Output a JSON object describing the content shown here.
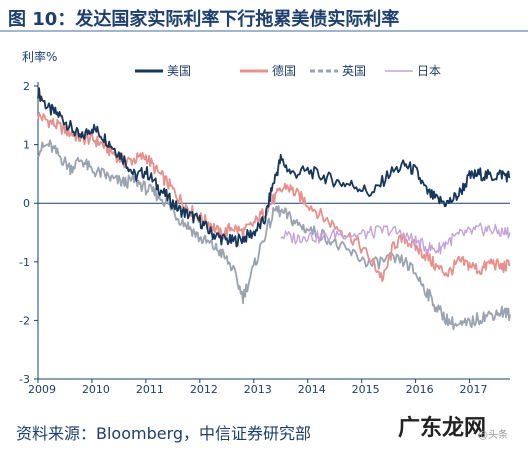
{
  "title": "图 10：发达国家实际利率下行拖累美债实际利率",
  "source": "资料来源：Bloomberg，中信证券研究部",
  "watermark": {
    "text": "广东龙网",
    "sub": "@头条"
  },
  "colors": {
    "title": "#1c3f6e",
    "us": "#16365c",
    "de": "#e8918c",
    "uk": "#9aa3b0",
    "jp": "#c6a2dc"
  },
  "chart_data": {
    "type": "line",
    "ylabel": "利率%",
    "ylim": [
      -3,
      2
    ],
    "xlim": [
      2009.0,
      2017.75
    ],
    "yticks": [
      "2",
      "1",
      "0",
      "-1",
      "-2",
      "-3"
    ],
    "xticks": [
      "2009",
      "2010",
      "2011",
      "2012",
      "2013",
      "2014",
      "2015",
      "2016",
      "2017"
    ],
    "legend_position": "top",
    "grid": false,
    "series": [
      {
        "name": "美国",
        "style": "solid",
        "points": [
          [
            2009.0,
            1.9
          ],
          [
            2009.2,
            1.6
          ],
          [
            2009.4,
            1.5
          ],
          [
            2009.6,
            1.3
          ],
          [
            2009.8,
            1.1
          ],
          [
            2010.0,
            1.3
          ],
          [
            2010.2,
            1.15
          ],
          [
            2010.4,
            0.95
          ],
          [
            2010.6,
            0.75
          ],
          [
            2010.8,
            0.45
          ],
          [
            2011.0,
            0.55
          ],
          [
            2011.2,
            0.3
          ],
          [
            2011.4,
            0.1
          ],
          [
            2011.6,
            -0.1
          ],
          [
            2011.8,
            -0.2
          ],
          [
            2012.0,
            -0.3
          ],
          [
            2012.2,
            -0.5
          ],
          [
            2012.4,
            -0.6
          ],
          [
            2012.6,
            -0.65
          ],
          [
            2012.8,
            -0.6
          ],
          [
            2013.0,
            -0.5
          ],
          [
            2013.2,
            -0.3
          ],
          [
            2013.35,
            0.3
          ],
          [
            2013.5,
            0.75
          ],
          [
            2013.7,
            0.5
          ],
          [
            2014.0,
            0.55
          ],
          [
            2014.3,
            0.45
          ],
          [
            2014.6,
            0.35
          ],
          [
            2014.9,
            0.3
          ],
          [
            2015.2,
            0.15
          ],
          [
            2015.5,
            0.5
          ],
          [
            2015.8,
            0.65
          ],
          [
            2016.0,
            0.55
          ],
          [
            2016.2,
            0.2
          ],
          [
            2016.4,
            0.05
          ],
          [
            2016.6,
            0.0
          ],
          [
            2016.8,
            0.15
          ],
          [
            2017.0,
            0.45
          ],
          [
            2017.2,
            0.5
          ],
          [
            2017.4,
            0.45
          ],
          [
            2017.6,
            0.5
          ],
          [
            2017.75,
            0.45
          ]
        ]
      },
      {
        "name": "德国",
        "style": "solid",
        "points": [
          [
            2009.0,
            1.5
          ],
          [
            2009.2,
            1.4
          ],
          [
            2009.4,
            1.3
          ],
          [
            2009.6,
            1.2
          ],
          [
            2009.8,
            1.1
          ],
          [
            2010.0,
            1.1
          ],
          [
            2010.2,
            1.0
          ],
          [
            2010.4,
            0.85
          ],
          [
            2010.6,
            0.7
          ],
          [
            2010.8,
            0.75
          ],
          [
            2011.0,
            0.8
          ],
          [
            2011.2,
            0.55
          ],
          [
            2011.4,
            0.35
          ],
          [
            2011.6,
            0.1
          ],
          [
            2011.8,
            -0.1
          ],
          [
            2012.0,
            -0.25
          ],
          [
            2012.2,
            -0.35
          ],
          [
            2012.4,
            -0.55
          ],
          [
            2012.6,
            -0.4
          ],
          [
            2012.8,
            -0.5
          ],
          [
            2013.0,
            -0.35
          ],
          [
            2013.2,
            -0.15
          ],
          [
            2013.4,
            0.1
          ],
          [
            2013.6,
            0.3
          ],
          [
            2013.8,
            0.15
          ],
          [
            2014.0,
            0.0
          ],
          [
            2014.3,
            -0.25
          ],
          [
            2014.6,
            -0.45
          ],
          [
            2014.9,
            -0.65
          ],
          [
            2015.2,
            -1.0
          ],
          [
            2015.4,
            -1.3
          ],
          [
            2015.6,
            -0.7
          ],
          [
            2015.8,
            -0.6
          ],
          [
            2016.0,
            -0.75
          ],
          [
            2016.2,
            -0.9
          ],
          [
            2016.4,
            -1.1
          ],
          [
            2016.6,
            -1.2
          ],
          [
            2016.8,
            -1.0
          ],
          [
            2017.0,
            -1.05
          ],
          [
            2017.2,
            -1.15
          ],
          [
            2017.4,
            -1.0
          ],
          [
            2017.6,
            -1.1
          ],
          [
            2017.75,
            -1.05
          ]
        ]
      },
      {
        "name": "英国",
        "style": "dashed",
        "points": [
          [
            2009.0,
            0.9
          ],
          [
            2009.2,
            1.0
          ],
          [
            2009.4,
            0.8
          ],
          [
            2009.6,
            0.6
          ],
          [
            2009.8,
            0.75
          ],
          [
            2010.0,
            0.55
          ],
          [
            2010.2,
            0.5
          ],
          [
            2010.4,
            0.4
          ],
          [
            2010.6,
            0.35
          ],
          [
            2010.8,
            0.4
          ],
          [
            2011.0,
            0.25
          ],
          [
            2011.2,
            0.15
          ],
          [
            2011.4,
            0.0
          ],
          [
            2011.6,
            -0.25
          ],
          [
            2011.8,
            -0.4
          ],
          [
            2012.0,
            -0.6
          ],
          [
            2012.2,
            -0.7
          ],
          [
            2012.4,
            -0.85
          ],
          [
            2012.6,
            -1.1
          ],
          [
            2012.8,
            -1.6
          ],
          [
            2013.0,
            -1.1
          ],
          [
            2013.2,
            -0.55
          ],
          [
            2013.4,
            -0.1
          ],
          [
            2013.6,
            -0.2
          ],
          [
            2013.8,
            -0.35
          ],
          [
            2014.0,
            -0.45
          ],
          [
            2014.3,
            -0.55
          ],
          [
            2014.6,
            -0.75
          ],
          [
            2014.9,
            -0.9
          ],
          [
            2015.2,
            -1.05
          ],
          [
            2015.5,
            -0.95
          ],
          [
            2015.8,
            -1.0
          ],
          [
            2016.0,
            -1.2
          ],
          [
            2016.2,
            -1.5
          ],
          [
            2016.4,
            -1.8
          ],
          [
            2016.6,
            -2.0
          ],
          [
            2016.8,
            -2.1
          ],
          [
            2017.0,
            -2.05
          ],
          [
            2017.2,
            -1.95
          ],
          [
            2017.4,
            -1.9
          ],
          [
            2017.6,
            -1.85
          ],
          [
            2017.75,
            -1.9
          ]
        ]
      },
      {
        "name": "日本",
        "style": "solid",
        "points": [
          [
            2013.5,
            -0.55
          ],
          [
            2013.8,
            -0.6
          ],
          [
            2014.0,
            -0.55
          ],
          [
            2014.3,
            -0.6
          ],
          [
            2014.6,
            -0.5
          ],
          [
            2014.9,
            -0.55
          ],
          [
            2015.2,
            -0.5
          ],
          [
            2015.5,
            -0.45
          ],
          [
            2015.8,
            -0.55
          ],
          [
            2016.0,
            -0.65
          ],
          [
            2016.2,
            -0.75
          ],
          [
            2016.4,
            -0.8
          ],
          [
            2016.6,
            -0.65
          ],
          [
            2016.8,
            -0.55
          ],
          [
            2017.0,
            -0.5
          ],
          [
            2017.2,
            -0.45
          ],
          [
            2017.4,
            -0.45
          ],
          [
            2017.6,
            -0.5
          ],
          [
            2017.75,
            -0.5
          ]
        ]
      }
    ]
  }
}
